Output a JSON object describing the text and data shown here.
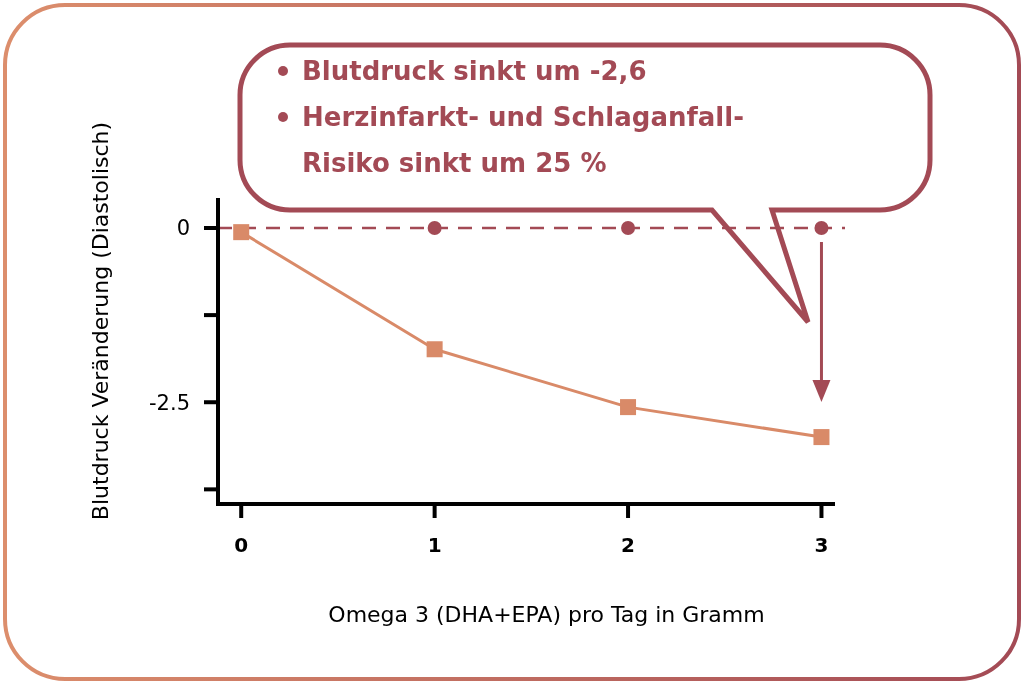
{
  "chart_data": {
    "type": "line",
    "xlabel": "Omega 3 (DHA+EPA) pro Tag in Gramm",
    "ylabel": "Blutdruck Veränderung (Diastolisch)",
    "x": [
      0,
      1,
      2,
      3
    ],
    "series": [
      {
        "color": "#d98a68",
        "values": [
          -0.06,
          -1.74,
          -2.57,
          -3.0
        ],
        "marker": "square"
      },
      {
        "type": "scatter",
        "color": "#a34a55",
        "values": [
          null,
          0,
          0,
          0
        ],
        "marker": "circle"
      }
    ],
    "xlim": [
      -0.12,
      3.07
    ],
    "xticks": [
      0,
      1,
      2,
      3
    ],
    "ylim": [
      -3.96,
      0.43
    ],
    "yticks": [
      {
        "value": 0,
        "label": "0"
      },
      {
        "value": -1.25,
        "label": null
      },
      -2.5,
      {
        "value": -3.75,
        "label": null
      }
    ],
    "ref_lines": [
      {
        "axis": "y",
        "value": 0,
        "color": "#a34a55",
        "line_style": "dashed"
      }
    ],
    "annotations": [
      "Blutdruck sinkt um -2,6",
      "Herzinfarkt- und Schlaganfall-Risiko sinkt um 25 %"
    ],
    "grid": false
  }
}
